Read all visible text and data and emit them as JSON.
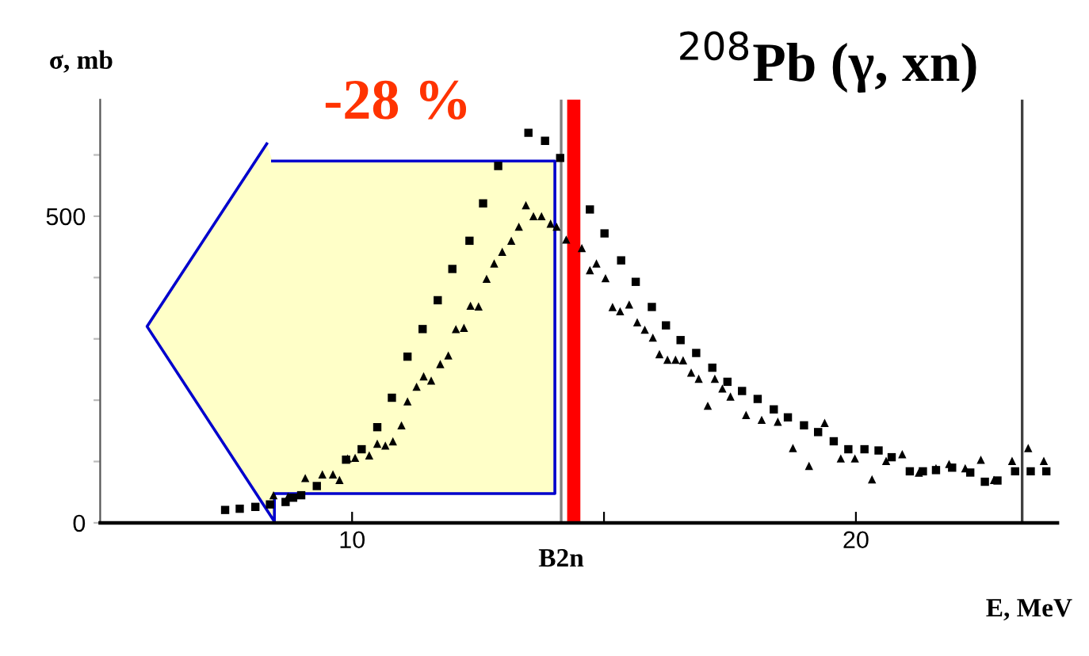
{
  "chart_data": {
    "type": "scatter",
    "title": "$^{208}$Pb (γ, xn)",
    "xlabel": "E, MeV",
    "ylabel": "σ, mb",
    "annotations": [
      "-28 %"
    ],
    "xlim": [
      5,
      24
    ],
    "xticks": [
      10,
      {
        "value": 15,
        "label": null
      },
      20
    ],
    "ylim": [
      0,
      690
    ],
    "yticks": [
      0,
      {
        "value": 100,
        "label": null
      },
      {
        "value": 200,
        "label": null
      },
      {
        "value": 300,
        "label": null
      },
      {
        "value": 400,
        "label": null
      },
      500,
      {
        "value": 600,
        "label": null
      }
    ],
    "grid": false,
    "legend": false,
    "ref_lines": [
      {
        "axis": "x",
        "value": 14.15,
        "label": "B2n",
        "color": "#808080"
      },
      {
        "axis": "x",
        "value": 14.4,
        "label": null,
        "color": "#ff0000"
      },
      {
        "axis": "x",
        "value": 23.3,
        "label": null,
        "color": "#404040"
      }
    ],
    "series": [
      {
        "color": "#000000",
        "marker": "square",
        "x": [
          7.48,
          7.77,
          8.08,
          8.37,
          8.68,
          8.83,
          8.99,
          9.3,
          9.88,
          10.19,
          10.5,
          10.79,
          11.1,
          11.4,
          11.7,
          11.99,
          12.33,
          12.6,
          12.9,
          13.5,
          13.83,
          14.13,
          14.72,
          15.01,
          15.34,
          15.63,
          15.95,
          16.23,
          16.52,
          16.83,
          17.15,
          17.45,
          17.74,
          18.05,
          18.37,
          18.65,
          18.97,
          19.25,
          19.56,
          19.85,
          20.17,
          20.45,
          20.71,
          21.07,
          21.33,
          21.59,
          21.91,
          22.27,
          22.56,
          22.81,
          23.16,
          23.47,
          23.78
        ],
        "values": [
          21,
          23,
          26,
          30,
          34,
          41,
          45,
          60,
          103,
          120,
          156,
          204,
          271,
          316,
          363,
          414,
          460,
          521,
          582,
          636,
          623,
          595,
          511,
          472,
          428,
          393,
          352,
          322,
          298,
          277,
          253,
          230,
          215,
          202,
          185,
          172,
          159,
          148,
          133,
          120,
          120,
          118,
          107,
          84,
          84,
          86,
          90,
          82,
          67,
          69,
          84,
          84,
          84
        ]
      },
      {
        "color": "#000000",
        "marker": "triangle",
        "x": [
          8.44,
          8.73,
          9.07,
          9.41,
          9.62,
          9.75,
          9.91,
          10.06,
          10.34,
          10.5,
          10.66,
          10.81,
          10.98,
          11.1,
          11.28,
          11.42,
          11.57,
          11.75,
          11.91,
          12.06,
          12.22,
          12.35,
          12.51,
          12.67,
          12.82,
          12.98,
          13.16,
          13.31,
          13.45,
          13.6,
          13.76,
          13.94,
          14.06,
          14.25,
          14.56,
          14.72,
          14.85,
          15.03,
          15.17,
          15.32,
          15.5,
          15.66,
          15.81,
          15.97,
          16.1,
          16.26,
          16.42,
          16.57,
          16.73,
          16.88,
          17.06,
          17.2,
          17.35,
          17.51,
          17.82,
          18.13,
          18.45,
          18.75,
          19.07,
          19.38,
          19.7,
          19.98,
          20.32,
          20.6,
          20.92,
          21.25,
          21.59,
          21.85,
          22.17,
          22.48,
          22.74,
          23.1,
          23.42,
          23.73
        ],
        "values": [
          45,
          43,
          73,
          79,
          79,
          70,
          105,
          106,
          110,
          129,
          126,
          133,
          159,
          198,
          222,
          239,
          232,
          259,
          273,
          316,
          318,
          354,
          353,
          398,
          423,
          442,
          460,
          483,
          518,
          500,
          500,
          488,
          483,
          462,
          448,
          412,
          423,
          399,
          352,
          345,
          356,
          327,
          315,
          302,
          275,
          266,
          266,
          265,
          245,
          235,
          191,
          235,
          219,
          206,
          176,
          168,
          165,
          122,
          93,
          163,
          105,
          105,
          71,
          101,
          112,
          82,
          89,
          96,
          89,
          103,
          70,
          101,
          122,
          101
        ]
      }
    ]
  }
}
